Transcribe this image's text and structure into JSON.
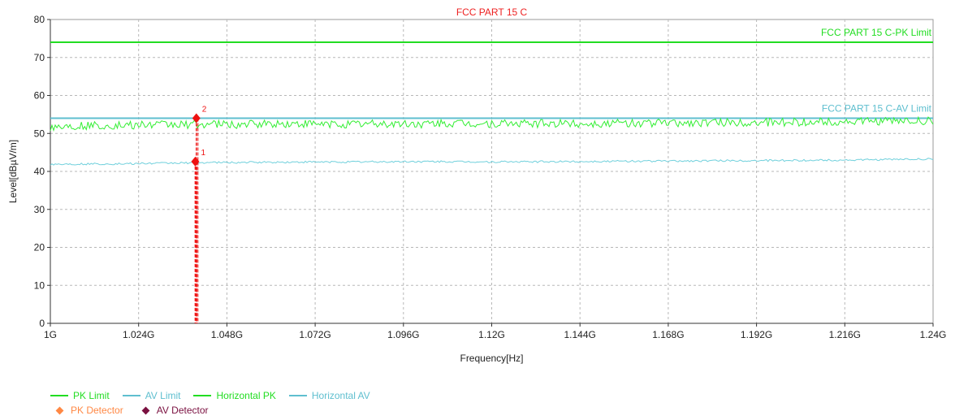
{
  "chart_data": {
    "type": "line",
    "title": "FCC PART 15 C",
    "xlabel": "Frequency[Hz]",
    "ylabel": "Level[dBµV/m]",
    "xlim": [
      1.0,
      1.24
    ],
    "ylim": [
      0,
      80
    ],
    "x_ticks": [
      1.0,
      1.024,
      1.048,
      1.072,
      1.096,
      1.12,
      1.144,
      1.168,
      1.192,
      1.216,
      1.24
    ],
    "x_tick_labels": [
      "1G",
      "1.024G",
      "1.048G",
      "1.072G",
      "1.096G",
      "1.12G",
      "1.144G",
      "1.168G",
      "1.192G",
      "1.216G",
      "1.24G"
    ],
    "y_ticks": [
      0,
      10,
      20,
      30,
      40,
      50,
      60,
      70,
      80
    ],
    "y_tick_labels": [
      "0",
      "10",
      "20",
      "30",
      "40",
      "50",
      "60",
      "70",
      "80"
    ],
    "grid": true,
    "series": [
      {
        "name": "PK Limit",
        "color": "#22dd22",
        "style": "limit",
        "x": [
          1.0,
          1.24
        ],
        "values": [
          74,
          74
        ]
      },
      {
        "name": "AV Limit",
        "color": "#5fbfcf",
        "style": "limit",
        "x": [
          1.0,
          1.24
        ],
        "values": [
          54,
          54
        ]
      },
      {
        "name": "Horizontal PK",
        "color": "#33ee33",
        "style": "trace",
        "x": [
          1.0,
          1.01,
          1.02,
          1.03,
          1.04,
          1.05,
          1.06,
          1.07,
          1.08,
          1.09,
          1.1,
          1.11,
          1.12,
          1.13,
          1.14,
          1.15,
          1.16,
          1.17,
          1.18,
          1.19,
          1.2,
          1.21,
          1.22,
          1.23,
          1.24
        ],
        "values": [
          51.8,
          52.0,
          52.1,
          52.3,
          52.4,
          52.3,
          52.5,
          52.4,
          52.5,
          52.6,
          52.5,
          52.6,
          52.5,
          52.6,
          52.7,
          52.6,
          52.7,
          52.8,
          52.8,
          52.9,
          53.0,
          53.0,
          53.1,
          53.2,
          53.4
        ]
      },
      {
        "name": "Horizontal AV",
        "color": "#70d0dc",
        "style": "trace",
        "x": [
          1.0,
          1.02,
          1.04,
          1.06,
          1.08,
          1.1,
          1.12,
          1.14,
          1.16,
          1.18,
          1.2,
          1.22,
          1.24
        ],
        "values": [
          41.9,
          42.0,
          42.3,
          42.4,
          42.5,
          42.6,
          42.5,
          42.6,
          42.7,
          42.8,
          42.9,
          43.0,
          43.3
        ]
      }
    ],
    "limit_labels": [
      {
        "text": "FCC PART 15 C-PK Limit",
        "color": "#22dd22",
        "y": 74
      },
      {
        "text": "FCC PART 15 C-AV Limit",
        "color": "#5fbfcf",
        "y": 54
      }
    ],
    "markers": [
      {
        "label": "1",
        "x": 1.0394,
        "y": 42.6,
        "color": "#ee1111"
      },
      {
        "label": "2",
        "x": 1.0397,
        "y": 54.0,
        "color": "#ee1111"
      }
    ],
    "legend": {
      "placement": "bottom-left",
      "rows": [
        [
          {
            "label": "PK Limit",
            "kind": "line",
            "color": "#22dd22"
          },
          {
            "label": "AV Limit",
            "kind": "line",
            "color": "#5fbfcf"
          },
          {
            "label": "Horizontal PK",
            "kind": "line",
            "color": "#22dd22"
          },
          {
            "label": "Horizontal AV",
            "kind": "line",
            "color": "#5fbfcf"
          }
        ],
        [
          {
            "label": "PK Detector",
            "kind": "diamond",
            "color": "#ff8844"
          },
          {
            "label": "AV Detector",
            "kind": "diamond",
            "color": "#7a1040"
          }
        ]
      ]
    }
  }
}
